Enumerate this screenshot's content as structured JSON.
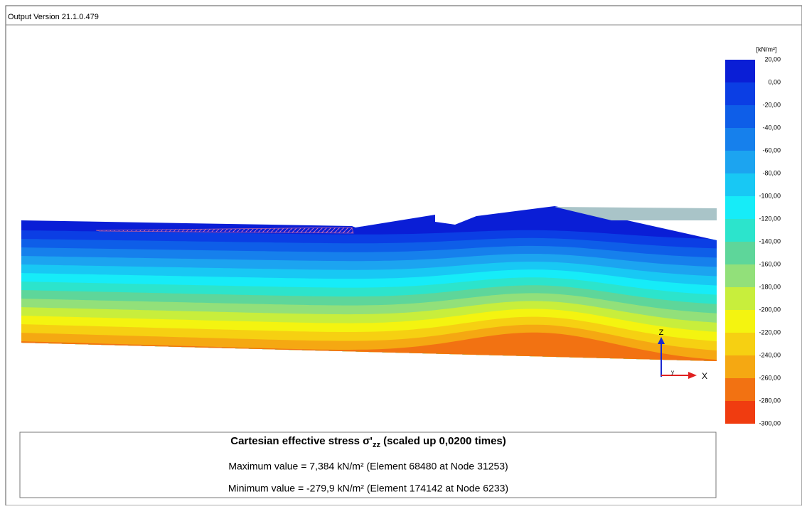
{
  "window": {
    "title": "Output Version 21.1.0.479"
  },
  "legend": {
    "unit": "[kN/m²]",
    "labels": [
      "20,00",
      "0,00",
      "-20,00",
      "-40,00",
      "-60,00",
      "-80,00",
      "-100,00",
      "-120,00",
      "-140,00",
      "-160,00",
      "-180,00",
      "-200,00",
      "-220,00",
      "-240,00",
      "-260,00",
      "-280,00",
      "-300,00"
    ],
    "colors": [
      "#0a1ed6",
      "#0b3ee4",
      "#0e5ee8",
      "#1680ec",
      "#1ca4f0",
      "#18c8f4",
      "#16ecf8",
      "#2ce4cc",
      "#5ed69a",
      "#92e07a",
      "#c8ee3c",
      "#f4f410",
      "#f6d012",
      "#f5a812",
      "#f27212",
      "#f03c10"
    ]
  },
  "axes": {
    "z": "Z",
    "x": "X",
    "y": "y"
  },
  "info": {
    "title_main": "Cartesian effective stress σ'",
    "title_sub": "zz",
    "title_rest": " (scaled up 0,0200 times)",
    "max": "Maximum value = 7,384 kN/m² (Element 68480 at Node 31253)",
    "min": "Minimum value = -279,9 kN/m² (Element 174142 at Node 6233)"
  }
}
